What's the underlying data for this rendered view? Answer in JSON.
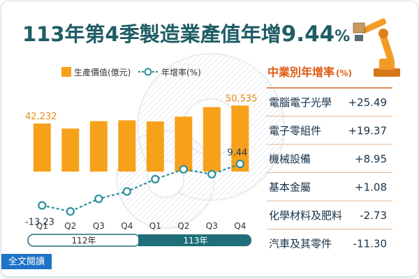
{
  "headline": {
    "part1": "113年第4季製造業產值年增",
    "part2": "9.44",
    "part3": "%"
  },
  "legend": {
    "bar": "生產價值(億元)",
    "line": "年增率(%)"
  },
  "colors": {
    "bar": "#f7a11b",
    "line": "#2b8f9a",
    "headline": "#1f5d66",
    "accent": "#e05a12",
    "year_dark": "#1f6e79"
  },
  "chart_data": {
    "type": "bar",
    "categories": [
      "Q1",
      "Q2",
      "Q3",
      "Q4",
      "Q1",
      "Q2",
      "Q3",
      "Q4"
    ],
    "year_groups": [
      {
        "label": "112年",
        "start": 0,
        "end": 3
      },
      {
        "label": "113年",
        "start": 4,
        "end": 7
      }
    ],
    "series": [
      {
        "name": "生產價值(億元)",
        "type": "bar",
        "values": [
          42232,
          39900,
          43300,
          43700,
          43200,
          45400,
          49800,
          50535
        ],
        "labels": [
          "42,232",
          "",
          "",
          "",
          "",
          "",
          "",
          "50,535"
        ]
      },
      {
        "name": "年增率(%)",
        "type": "line",
        "values": [
          -13.23,
          -16.5,
          -9.6,
          -5.6,
          1.1,
          6.5,
          3.8,
          9.44
        ],
        "labels": [
          "-13.23",
          "",
          "",
          "",
          "",
          "",
          "",
          "9.44"
        ]
      }
    ]
  },
  "industry_panel": {
    "title": "中業別年增率",
    "unit": "(%)",
    "items": [
      {
        "name": "電腦電子光學",
        "value": "+25.49"
      },
      {
        "name": "電子零組件",
        "value": "+19.37"
      },
      {
        "name": "機械設備",
        "value": "+8.95"
      },
      {
        "name": "基本金屬",
        "value": "+1.08"
      },
      {
        "name": "化學材料及肥料",
        "value": "-2.73"
      },
      {
        "name": "汽車及其零件",
        "value": "-11.30"
      }
    ]
  },
  "footer": {
    "fulltext_label": "全文閱讀"
  }
}
